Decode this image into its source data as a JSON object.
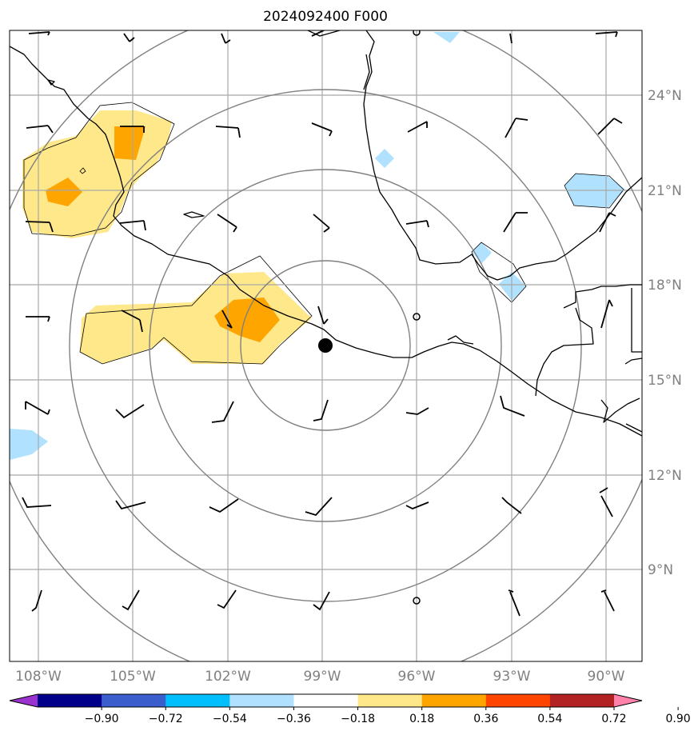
{
  "title": "2024092400 F000",
  "lon_labels": [
    "108°W",
    "105°W",
    "102°W",
    "99°W",
    "96°W",
    "93°W",
    "90°W"
  ],
  "lat_labels": [
    "24°N",
    "21°N",
    "18°N",
    "15°N",
    "12°N",
    "9°N"
  ],
  "colorbar": {
    "ticks": [
      "−0.90",
      "−0.72",
      "−0.54",
      "−0.36",
      "−0.18",
      "0.18",
      "0.36",
      "0.54",
      "0.72",
      "0.90"
    ],
    "colors": [
      "#9a32cd",
      "#00008b",
      "#3a5fcd",
      "#00bfff",
      "#b0e2ff",
      "#ffffff",
      "#ffe88a",
      "#ffa500",
      "#ff4500",
      "#b22222",
      "#ff82ab"
    ]
  },
  "storm_center": {
    "lon": -98.9,
    "lat": 16.1
  },
  "colors": {
    "positive_low": "#ffe88a",
    "positive_mid": "#ffa500",
    "negative_low": "#b0e2ff",
    "rings": "#808080",
    "grid": "#a8a8a8",
    "labels": "#808080"
  }
}
